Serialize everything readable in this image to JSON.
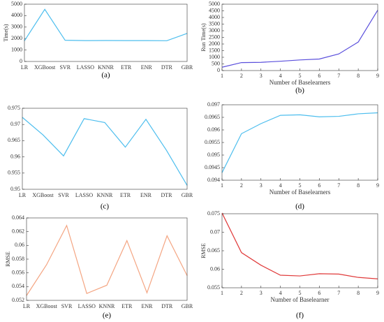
{
  "chart_data": [
    {
      "type": "line",
      "label": "(a)",
      "ylabel": "Time(s)",
      "categories": [
        "LR",
        "XGBoost",
        "SVR",
        "LASSO",
        "KNNR",
        "ETR",
        "ENR",
        "DTR",
        "GBR"
      ],
      "values": [
        1800,
        4550,
        1850,
        1820,
        1830,
        1820,
        1820,
        1810,
        2450
      ],
      "color": "#4dbeee",
      "ylim": [
        0,
        5000
      ],
      "yticks": [
        0,
        1000,
        2000,
        3000,
        4000,
        5000
      ]
    },
    {
      "type": "line",
      "label": "(b)",
      "ylabel": "Run Time(s)",
      "xlabel": "Number of Baselearners",
      "x": [
        1,
        2,
        3,
        4,
        5,
        6,
        7,
        8,
        9
      ],
      "values": [
        250,
        600,
        620,
        700,
        800,
        870,
        1250,
        2150,
        4550
      ],
      "color": "#5a4fdc",
      "xlim": [
        1,
        9
      ],
      "xticks": [
        1,
        2,
        3,
        4,
        5,
        6,
        7,
        8,
        9
      ],
      "ylim": [
        0,
        5000
      ],
      "yticks": [
        0,
        500,
        1000,
        1500,
        2000,
        2500,
        3000,
        3500,
        4000,
        4500,
        5000
      ]
    },
    {
      "type": "line",
      "label": "(c)",
      "categories": [
        "LR",
        "XGBoost",
        "SVR",
        "LASSO",
        "KNNR",
        "ETR",
        "ENR",
        "DTR",
        "GBR"
      ],
      "values": [
        0.9722,
        0.9668,
        0.9603,
        0.9718,
        0.9706,
        0.963,
        0.9716,
        0.962,
        0.9512
      ],
      "color": "#4dbeee",
      "ylim": [
        0.95,
        0.975
      ],
      "yticks": [
        0.95,
        0.955,
        0.96,
        0.965,
        0.97,
        0.975
      ]
    },
    {
      "type": "line",
      "label": "(d)",
      "xlabel": "Number of Baselearners",
      "x": [
        1,
        2,
        3,
        4,
        5,
        6,
        7,
        8,
        9
      ],
      "values": [
        0.0943,
        0.09585,
        0.09625,
        0.09658,
        0.0966,
        0.09652,
        0.09654,
        0.09664,
        0.09668
      ],
      "color": "#4dbeee",
      "xlim": [
        1,
        9
      ],
      "xticks": [
        1,
        2,
        3,
        4,
        5,
        6,
        7,
        8,
        9
      ],
      "ylim": [
        0.094,
        0.097
      ],
      "yticks": [
        0.094,
        0.0945,
        0.095,
        0.0955,
        0.096,
        0.0965,
        0.097
      ]
    },
    {
      "type": "line",
      "label": "(e)",
      "ylabel": "RMSE",
      "categories": [
        "LR",
        "XGBoost",
        "SVR",
        "LASSO",
        "KNNR",
        "ETR",
        "ENR",
        "DTR",
        "GBR"
      ],
      "values": [
        0.0527,
        0.0572,
        0.0629,
        0.053,
        0.0542,
        0.0607,
        0.0531,
        0.0614,
        0.0556
      ],
      "color": "#f4a582",
      "ylim": [
        0.052,
        0.064
      ],
      "yticks": [
        0.052,
        0.054,
        0.056,
        0.058,
        0.06,
        0.062,
        0.064
      ]
    },
    {
      "type": "line",
      "label": "(f)",
      "ylabel": "RMSE",
      "xlabel": "Number of Baselearner",
      "x": [
        1,
        2,
        3,
        4,
        5,
        6,
        7,
        8,
        9
      ],
      "values": [
        0.0752,
        0.0645,
        0.0611,
        0.0584,
        0.0582,
        0.0588,
        0.0587,
        0.0578,
        0.0574
      ],
      "color": "#e03a3a",
      "xlim": [
        1,
        9
      ],
      "xticks": [
        1,
        2,
        3,
        4,
        5,
        6,
        7,
        8,
        9
      ],
      "ylim": [
        0.055,
        0.075
      ],
      "yticks": [
        0.055,
        0.06,
        0.065,
        0.07,
        0.075
      ]
    }
  ]
}
